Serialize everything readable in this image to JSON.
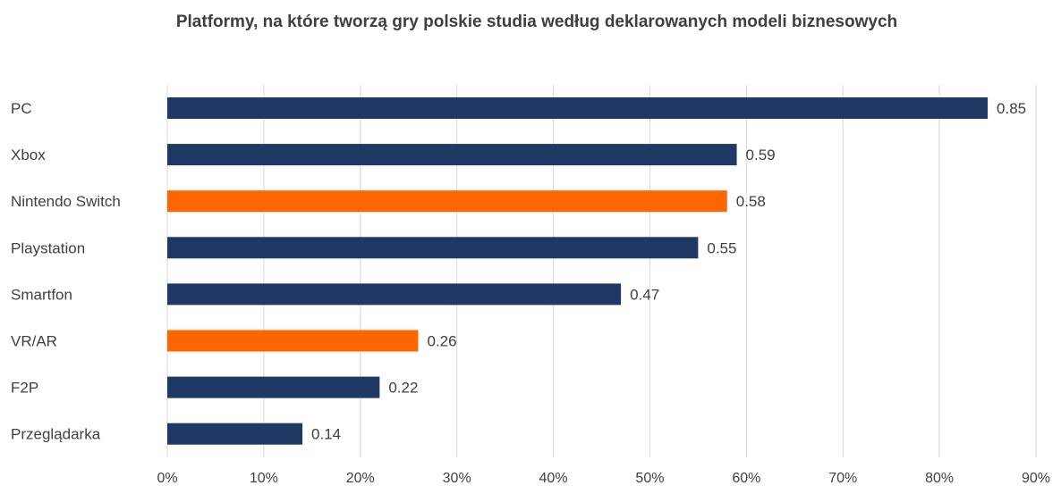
{
  "chart_data": {
    "type": "bar",
    "orientation": "horizontal",
    "title": "Platformy, na które tworzą gry polskie studia według deklarowanych modeli biznesowych",
    "categories": [
      "PC",
      "Xbox",
      "Nintendo Switch",
      "Playstation",
      "Smartfon",
      "VR/AR",
      "F2P",
      "Przeglądarka"
    ],
    "values": [
      0.85,
      0.59,
      0.58,
      0.55,
      0.47,
      0.26,
      0.22,
      0.14
    ],
    "data_labels": [
      "0.85",
      "0.59",
      "0.58",
      "0.55",
      "0.47",
      "0.26",
      "0.22",
      "0.14"
    ],
    "bar_colors": [
      "#1f3864",
      "#1f3864",
      "#ff6600",
      "#1f3864",
      "#1f3864",
      "#ff6600",
      "#1f3864",
      "#1f3864"
    ],
    "xlim": [
      0,
      0.9
    ],
    "x_ticks": [
      0,
      0.1,
      0.2,
      0.3,
      0.4,
      0.5,
      0.6,
      0.7,
      0.8,
      0.9
    ],
    "x_tick_labels": [
      "0%",
      "10%",
      "20%",
      "30%",
      "40%",
      "50%",
      "60%",
      "70%",
      "80%",
      "90%"
    ],
    "xlabel": "",
    "ylabel": "",
    "grid": "vertical",
    "legend": "none",
    "colors": {
      "primary": "#1f3864",
      "highlight": "#ff6600",
      "grid": "#d9d9d9",
      "text": "#404040"
    }
  }
}
